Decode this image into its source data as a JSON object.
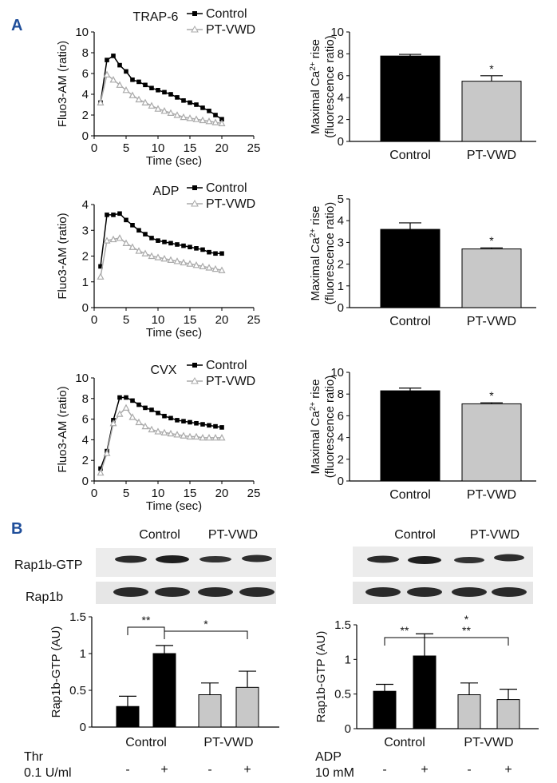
{
  "panel_labels": {
    "a": "A",
    "b": "B"
  },
  "colors": {
    "control": "#000000",
    "ptvwd": "#aaaaaa",
    "ptvwd_bar": "#c8c8c8",
    "panel_label": "#1f4e9a"
  },
  "chart_data": [
    {
      "id": "trap6_line",
      "type": "line",
      "title": "TRAP-6",
      "xlabel": "Time (sec)",
      "ylabel": "Fluo3-AM (ratio)",
      "xlim": [
        0,
        25
      ],
      "ylim": [
        0,
        10
      ],
      "xticks": [
        "0",
        "5",
        "10",
        "15",
        "20",
        "25"
      ],
      "yticks": [
        "0",
        "2",
        "4",
        "6",
        "8",
        "10"
      ],
      "legend": [
        "Control",
        "PT-VWD"
      ],
      "x": [
        1,
        2,
        3,
        4,
        5,
        6,
        7,
        8,
        9,
        10,
        11,
        12,
        13,
        14,
        15,
        16,
        17,
        18,
        19,
        20
      ],
      "series": [
        {
          "name": "Control",
          "marker": "square",
          "values": [
            3.2,
            7.3,
            7.7,
            6.8,
            6.2,
            5.4,
            5.2,
            4.9,
            4.6,
            4.4,
            4.2,
            4.0,
            3.7,
            3.4,
            3.2,
            3.0,
            2.7,
            2.4,
            2.0,
            1.6
          ]
        },
        {
          "name": "PT-VWD",
          "marker": "triangle",
          "values": [
            3.2,
            5.9,
            5.4,
            4.9,
            4.4,
            3.9,
            3.5,
            3.2,
            2.9,
            2.6,
            2.4,
            2.2,
            2.0,
            1.8,
            1.7,
            1.6,
            1.5,
            1.4,
            1.3,
            1.2
          ]
        }
      ]
    },
    {
      "id": "trap6_bar",
      "type": "bar",
      "title": "",
      "xlabel": "",
      "ylabel": "Maximal Ca2+ rise (fluorescence ratio)",
      "ylabel_line1": "Maximal Ca",
      "ylabel_sup": "2+",
      "ylabel_line1_end": " rise",
      "ylabel_line2": "(fluorescence ratio)",
      "ylim": [
        0,
        10
      ],
      "yticks": [
        "0",
        "2",
        "4",
        "6",
        "8",
        "10"
      ],
      "categories": [
        "Control",
        "PT-VWD"
      ],
      "values": [
        7.8,
        5.5
      ],
      "errors": [
        0.15,
        0.5
      ],
      "significance": [
        "",
        "*"
      ]
    },
    {
      "id": "adp_line",
      "type": "line",
      "title": "ADP",
      "xlabel": "Time (sec)",
      "ylabel": "Fluo3-AM (ratio)",
      "xlim": [
        0,
        25
      ],
      "ylim": [
        0,
        4
      ],
      "xticks": [
        "0",
        "5",
        "10",
        "15",
        "20",
        "25"
      ],
      "yticks": [
        "0",
        "1",
        "2",
        "3",
        "4"
      ],
      "legend": [
        "Control",
        "PT-VWD"
      ],
      "x": [
        1,
        2,
        3,
        4,
        5,
        6,
        7,
        8,
        9,
        10,
        11,
        12,
        13,
        14,
        15,
        16,
        17,
        18,
        19,
        20
      ],
      "series": [
        {
          "name": "Control",
          "marker": "square",
          "values": [
            1.6,
            3.6,
            3.6,
            3.65,
            3.4,
            3.2,
            3.0,
            2.85,
            2.7,
            2.6,
            2.55,
            2.5,
            2.45,
            2.4,
            2.35,
            2.3,
            2.25,
            2.15,
            2.1,
            2.1
          ]
        },
        {
          "name": "PT-VWD",
          "marker": "triangle",
          "values": [
            1.2,
            2.6,
            2.65,
            2.7,
            2.5,
            2.35,
            2.2,
            2.1,
            2.0,
            1.95,
            1.9,
            1.85,
            1.8,
            1.75,
            1.7,
            1.65,
            1.6,
            1.55,
            1.5,
            1.45
          ]
        }
      ]
    },
    {
      "id": "adp_bar",
      "type": "bar",
      "title": "",
      "xlabel": "",
      "ylabel": "Maximal Ca2+ rise (fluorescence ratio)",
      "ylabel_line1": "Maximal Ca",
      "ylabel_sup": "2+",
      "ylabel_line1_end": " rise",
      "ylabel_line2": "(fluorescence ratio)",
      "ylim": [
        0,
        5
      ],
      "yticks": [
        "0",
        "1",
        "2",
        "3",
        "4",
        "5"
      ],
      "categories": [
        "Control",
        "PT-VWD"
      ],
      "values": [
        3.6,
        2.7
      ],
      "errors": [
        0.3,
        0.05
      ],
      "significance": [
        "",
        "*"
      ]
    },
    {
      "id": "cvx_line",
      "type": "line",
      "title": "CVX",
      "xlabel": "Time (sec)",
      "ylabel": "Fluo3-AM (ratio)",
      "xlim": [
        0,
        25
      ],
      "ylim": [
        0,
        10
      ],
      "xticks": [
        "0",
        "5",
        "10",
        "15",
        "20",
        "25"
      ],
      "yticks": [
        "0",
        "2",
        "4",
        "6",
        "8",
        "10"
      ],
      "legend": [
        "Control",
        "PT-VWD"
      ],
      "x": [
        1,
        2,
        3,
        4,
        5,
        6,
        7,
        8,
        9,
        10,
        11,
        12,
        13,
        14,
        15,
        16,
        17,
        18,
        19,
        20
      ],
      "series": [
        {
          "name": "Control",
          "marker": "square",
          "values": [
            1.2,
            2.9,
            5.9,
            8.1,
            8.1,
            7.8,
            7.4,
            7.1,
            6.9,
            6.6,
            6.3,
            6.1,
            5.9,
            5.8,
            5.7,
            5.6,
            5.5,
            5.4,
            5.3,
            5.2
          ]
        },
        {
          "name": "PT-VWD",
          "marker": "triangle",
          "values": [
            0.8,
            2.7,
            5.6,
            6.5,
            7.1,
            6.2,
            5.7,
            5.3,
            5.0,
            4.8,
            4.7,
            4.6,
            4.5,
            4.4,
            4.3,
            4.3,
            4.2,
            4.2,
            4.2,
            4.2
          ]
        }
      ]
    },
    {
      "id": "cvx_bar",
      "type": "bar",
      "title": "",
      "xlabel": "",
      "ylabel": "Maximal Ca2+ rise (fluorescence ratio)",
      "ylabel_line1": "Maximal Ca",
      "ylabel_sup": "2+",
      "ylabel_line1_end": " rise",
      "ylabel_line2": "(fluorescence ratio)",
      "ylim": [
        0,
        10
      ],
      "yticks": [
        "0",
        "2",
        "4",
        "6",
        "8",
        "10"
      ],
      "categories": [
        "Control",
        "PT-VWD"
      ],
      "values": [
        8.3,
        7.1
      ],
      "errors": [
        0.25,
        0.1
      ],
      "significance": [
        "",
        "*"
      ]
    },
    {
      "id": "thr_bar",
      "type": "bar",
      "title": "",
      "xlabel": "",
      "ylabel": "Rap1b-GTP (AU)",
      "ylim": [
        0,
        1.5
      ],
      "yticks": [
        "0",
        "0.5",
        "1",
        "1.5"
      ],
      "categories": [
        "-",
        "+",
        "-",
        "+"
      ],
      "groups": [
        "Control",
        "PT-VWD"
      ],
      "stimulus_label": "Thr",
      "dose_label": "0.1 U/ml",
      "values": [
        0.28,
        1.0,
        0.44,
        0.54
      ],
      "errors": [
        0.14,
        0.11,
        0.16,
        0.22
      ],
      "comparisons": [
        {
          "from": 0,
          "to": 1,
          "label": "**"
        },
        {
          "from": 1,
          "to": 3,
          "label": "*"
        }
      ]
    },
    {
      "id": "adp_rap_bar",
      "type": "bar",
      "title": "",
      "xlabel": "",
      "ylabel": "Rap1b-GTP (AU)",
      "ylim": [
        0,
        1.5
      ],
      "yticks": [
        "0",
        "0.5",
        "1",
        "1.5"
      ],
      "categories": [
        "-",
        "+",
        "-",
        "+"
      ],
      "groups": [
        "Control",
        "PT-VWD"
      ],
      "stimulus_label": "ADP",
      "dose_label": "10 mM",
      "values": [
        0.54,
        1.05,
        0.49,
        0.42
      ],
      "errors": [
        0.1,
        0.32,
        0.17,
        0.15
      ],
      "comparisons": [
        {
          "from": 0,
          "to": 1,
          "label": "**"
        },
        {
          "from": 1,
          "to": 3,
          "label": "*\n**"
        }
      ]
    }
  ],
  "blots": [
    {
      "id": "blot_thr",
      "group_labels": [
        "Control",
        "PT-VWD"
      ],
      "row_labels": [
        "Rap1b-GTP",
        "Rap1b"
      ]
    },
    {
      "id": "blot_adp",
      "group_labels": [
        "Control",
        "PT-VWD"
      ],
      "row_labels": [
        "",
        ""
      ]
    }
  ]
}
